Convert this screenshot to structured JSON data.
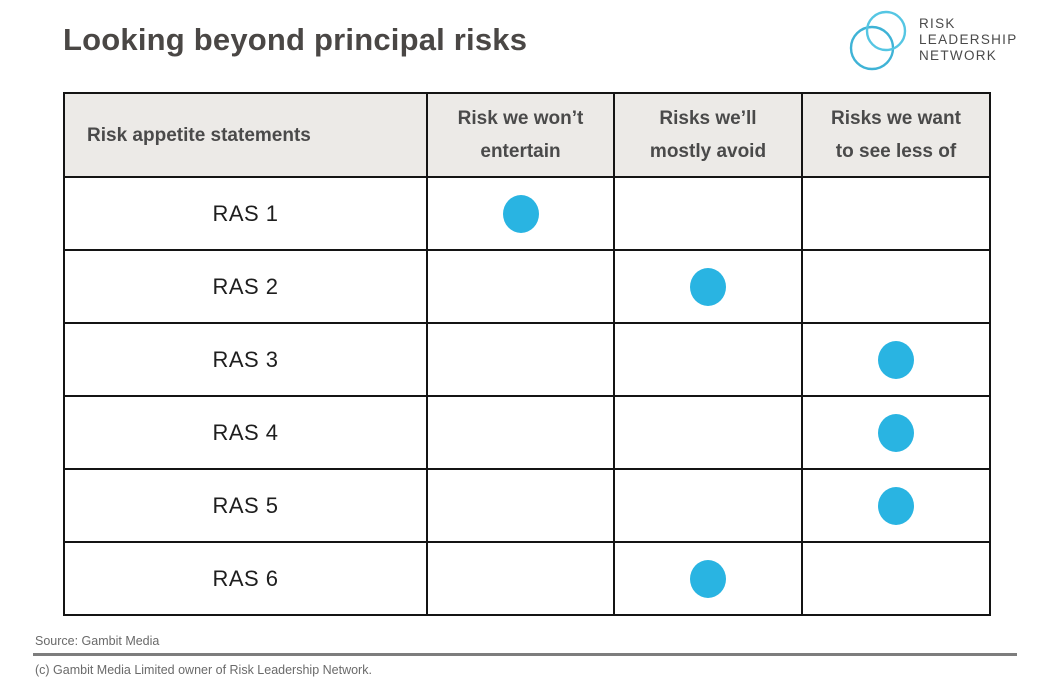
{
  "title": "Looking beyond principal risks",
  "logo": {
    "line1": "RISK",
    "line2": "LEADERSHIP",
    "line3": "NETWORK"
  },
  "table": {
    "header": {
      "col0": "Risk appetite statements",
      "col1": "Risk we won’t\nentertain",
      "col2": "Risks we’ll\nmostly avoid",
      "col3": "Risks we want\nto see less of"
    },
    "rows": [
      {
        "label": "RAS 1",
        "dot_column": 1
      },
      {
        "label": "RAS 2",
        "dot_column": 2
      },
      {
        "label": "RAS 3",
        "dot_column": 3
      },
      {
        "label": "RAS 4",
        "dot_column": 3
      },
      {
        "label": "RAS 5",
        "dot_column": 3
      },
      {
        "label": "RAS 6",
        "dot_column": 2
      }
    ]
  },
  "chart_data": {
    "type": "table",
    "title": "Looking beyond principal risks",
    "columns": [
      "Risk appetite statements",
      "Risk we won’t entertain",
      "Risks we’ll mostly avoid",
      "Risks we want to see less of"
    ],
    "rows": [
      {
        "label": "RAS 1",
        "rating": "Risk we won’t entertain"
      },
      {
        "label": "RAS 2",
        "rating": "Risks we’ll mostly avoid"
      },
      {
        "label": "RAS 3",
        "rating": "Risks we want to see less of"
      },
      {
        "label": "RAS 4",
        "rating": "Risks we want to see less of"
      },
      {
        "label": "RAS 5",
        "rating": "Risks we want to see less of"
      },
      {
        "label": "RAS 6",
        "rating": "Risks we’ll mostly avoid"
      }
    ],
    "marker": "filled cyan dot",
    "legend_position": "none",
    "grid": "full table borders"
  },
  "colors": {
    "dot": "#29B4E2",
    "header_bg": "#ECEAE7",
    "border": "#141414",
    "logo_circle_light": "#55C6E3",
    "logo_circle_dark": "#3FB3D6"
  },
  "footer": {
    "source": "Source: Gambit Media",
    "copyright": "(c) Gambit Media Limited owner of Risk Leadership Network."
  }
}
